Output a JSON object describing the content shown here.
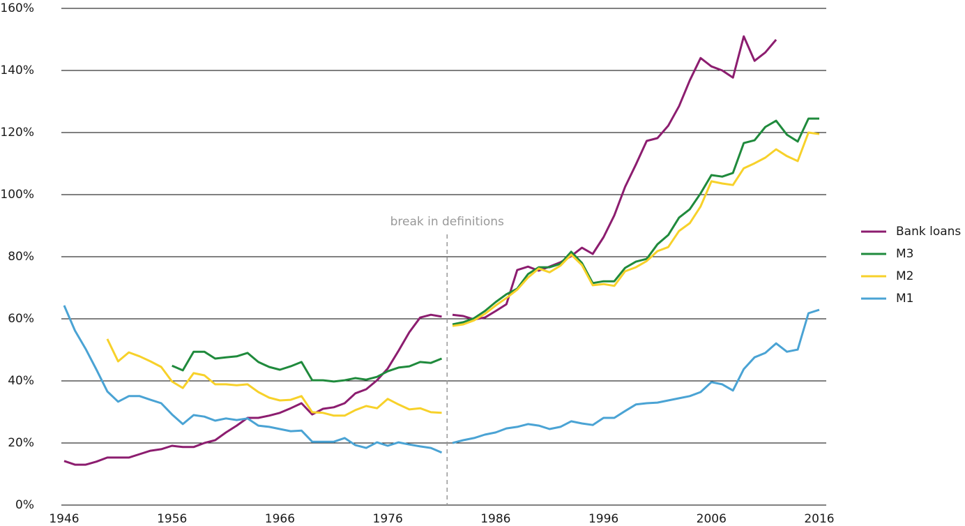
{
  "chart_data": {
    "type": "line",
    "x": [
      1946,
      1947,
      1948,
      1949,
      1950,
      1951,
      1952,
      1953,
      1954,
      1955,
      1956,
      1957,
      1958,
      1959,
      1960,
      1961,
      1962,
      1963,
      1964,
      1965,
      1966,
      1967,
      1968,
      1969,
      1970,
      1971,
      1972,
      1973,
      1974,
      1975,
      1976,
      1977,
      1978,
      1979,
      1980,
      1981,
      1982,
      1983,
      1984,
      1985,
      1986,
      1987,
      1988,
      1989,
      1990,
      1991,
      1992,
      1993,
      1994,
      1995,
      1996,
      1997,
      1998,
      1999,
      2000,
      2001,
      2002,
      2003,
      2004,
      2005,
      2006,
      2007,
      2008,
      2009,
      2010,
      2011,
      2012,
      2013,
      2014,
      2015,
      2016
    ],
    "series": [
      {
        "name": "Bank loans",
        "color": "#8c1d6f",
        "values": [
          14.2,
          13,
          13,
          14,
          15.3,
          15.3,
          15.3,
          16.4,
          17.5,
          18,
          19.1,
          18.7,
          18.7,
          20,
          20.9,
          23.4,
          25.6,
          28.1,
          28.1,
          28.8,
          29.7,
          31.2,
          32.8,
          29.2,
          31,
          31.5,
          32.8,
          36,
          37.3,
          40.2,
          44,
          49.7,
          55.7,
          60.4,
          61.3,
          60.7,
          61.3,
          60.9,
          59.8,
          60.4,
          62.5,
          64.7,
          75.7,
          76.8,
          75.5,
          76.8,
          78.2,
          80.2,
          82.9,
          80.9,
          86.3,
          93.3,
          102.5,
          109.7,
          117.3,
          118.2,
          122.2,
          128.5,
          136.8,
          144,
          141.3,
          140,
          137.7,
          151,
          143.1,
          145.8,
          149.9,
          null,
          null,
          null,
          null
        ]
      },
      {
        "name": "M3",
        "color": "#1f8a3c",
        "values": [
          null,
          null,
          null,
          null,
          null,
          null,
          null,
          null,
          null,
          null,
          44.9,
          43.4,
          49.4,
          49.4,
          47.2,
          47.6,
          47.9,
          49,
          46.1,
          44.5,
          43.6,
          44.7,
          46.1,
          40.2,
          40.2,
          39.8,
          40.2,
          40.9,
          40.4,
          41.3,
          43.1,
          44.3,
          44.7,
          46.1,
          45.8,
          47.2,
          58.2,
          58.9,
          60.2,
          62.5,
          65.4,
          67.9,
          69.7,
          74.4,
          76.6,
          76.6,
          77.7,
          81.6,
          78,
          71.5,
          72.1,
          72.1,
          76.4,
          78.4,
          79.3,
          84,
          87,
          92.6,
          95.3,
          100.4,
          106.3,
          105.8,
          107,
          116.6,
          117.5,
          121.8,
          123.8,
          119.3,
          117.1,
          124.5,
          124.5
        ]
      },
      {
        "name": "M2",
        "color": "#f7d12a",
        "values": [
          null,
          null,
          null,
          null,
          53.5,
          46.3,
          49.2,
          47.9,
          46.3,
          44.5,
          39.8,
          37.7,
          42.5,
          41.8,
          38.9,
          38.9,
          38.6,
          38.9,
          36.4,
          34.6,
          33.7,
          33.9,
          35.1,
          29.9,
          29.7,
          28.8,
          28.8,
          30.6,
          31.9,
          31.2,
          34.2,
          32.4,
          30.8,
          31.2,
          29.9,
          29.7,
          57.7,
          58.2,
          59.5,
          61.6,
          64.3,
          66.7,
          69.4,
          73.3,
          76.2,
          75,
          77.1,
          80.7,
          77.3,
          70.8,
          71.2,
          70.6,
          75.3,
          76.6,
          78.6,
          81.8,
          83.1,
          88.3,
          90.8,
          96.2,
          104.3,
          103.6,
          103.1,
          108.5,
          110.1,
          111.9,
          114.6,
          112.4,
          110.8,
          120,
          119.5
        ]
      },
      {
        "name": "M1",
        "color": "#4aa3d4",
        "values": [
          64.3,
          56.2,
          50.3,
          43.6,
          36.6,
          33.3,
          35.1,
          35.1,
          33.9,
          32.8,
          29.2,
          26.1,
          29,
          28.5,
          27.2,
          27.9,
          27.4,
          27.9,
          25.6,
          25.2,
          24.5,
          23.8,
          24,
          20.4,
          20.4,
          20.4,
          21.6,
          19.3,
          18.4,
          20.2,
          19.1,
          20.2,
          19.5,
          18.9,
          18.4,
          16.9,
          20,
          20.9,
          21.6,
          22.7,
          23.4,
          24.7,
          25.2,
          26.1,
          25.6,
          24.5,
          25.2,
          27,
          26.3,
          25.8,
          28.1,
          28.1,
          30.3,
          32.4,
          32.8,
          33,
          33.7,
          34.4,
          35.1,
          36.4,
          39.6,
          38.9,
          36.9,
          43.8,
          47.6,
          49,
          52.1,
          49.4,
          50.1,
          61.8,
          62.9
        ]
      }
    ],
    "annotation": {
      "text": "break in definitions",
      "x": 1981.5
    },
    "xlim": [
      1946,
      2016
    ],
    "xticks": [
      1946,
      1956,
      1966,
      1976,
      1986,
      1996,
      2006,
      2016
    ],
    "ylim": [
      0,
      160
    ],
    "yticks": [
      {
        "value": 0,
        "label": "0%"
      },
      {
        "value": 20,
        "label": "20%"
      },
      {
        "value": 40,
        "label": "40%"
      },
      {
        "value": 60,
        "label": "60%"
      },
      {
        "value": 80,
        "label": "80%"
      },
      {
        "value": 100,
        "label": "100%"
      },
      {
        "value": 120,
        "label": "120%"
      },
      {
        "value": 140,
        "label": "140%"
      },
      {
        "value": 160,
        "label": "160%"
      }
    ],
    "grid": true,
    "legend": "right"
  }
}
